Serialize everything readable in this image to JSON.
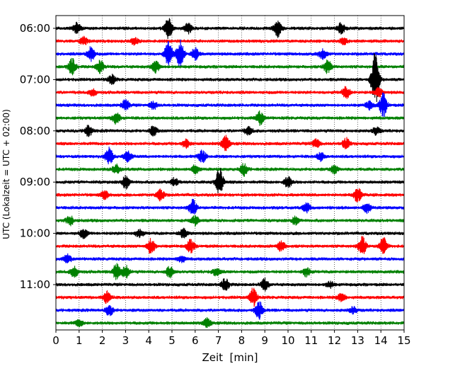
{
  "chart_data": {
    "type": "line",
    "chart_kind": "helicorder",
    "title": "",
    "xlabel": "Zeit  [min]",
    "ylabel": "UTC (Lokalzeit = UTC + 02:00)",
    "xlim": [
      0,
      15
    ],
    "x_ticks": [
      0,
      1,
      2,
      3,
      4,
      5,
      6,
      7,
      8,
      9,
      10,
      11,
      12,
      13,
      14,
      15
    ],
    "x_tick_labels": [
      "0",
      "1",
      "2",
      "3",
      "4",
      "5",
      "6",
      "7",
      "8",
      "9",
      "10",
      "11",
      "12",
      "13",
      "14",
      "15"
    ],
    "y_tick_labels": [
      "06:00",
      "07:00",
      "08:00",
      "09:00",
      "10:00",
      "11:00"
    ],
    "y_tick_rows": [
      0,
      4,
      8,
      12,
      16,
      20
    ],
    "grid": "vertical dotted lines at each minute",
    "trace_colors": [
      "#000000",
      "#ff0000",
      "#0000ff",
      "#008000"
    ],
    "traces": [
      {
        "start": "06:00",
        "color": "#000000",
        "events": [
          [
            0.9,
            0.8
          ],
          [
            4.85,
            1.6
          ],
          [
            5.7,
            0.8
          ],
          [
            9.55,
            1.3
          ],
          [
            12.3,
            0.9
          ]
        ]
      },
      {
        "start": "06:15",
        "color": "#ff0000",
        "events": [
          [
            1.2,
            0.6
          ],
          [
            3.4,
            0.5
          ],
          [
            12.4,
            0.5
          ]
        ]
      },
      {
        "start": "06:30",
        "color": "#0000ff",
        "events": [
          [
            1.5,
            1.1
          ],
          [
            4.85,
            1.9
          ],
          [
            5.35,
            2.1
          ],
          [
            6.0,
            0.9
          ],
          [
            11.5,
            0.8
          ]
        ]
      },
      {
        "start": "06:45",
        "color": "#008000",
        "events": [
          [
            0.7,
            1.3
          ],
          [
            1.9,
            1.0
          ],
          [
            4.3,
            0.9
          ],
          [
            11.7,
            1.0
          ]
        ]
      },
      {
        "start": "07:00",
        "color": "#000000",
        "events": [
          [
            2.4,
            0.7
          ],
          [
            13.75,
            4.3
          ]
        ]
      },
      {
        "start": "07:15",
        "color": "#ff0000",
        "events": [
          [
            1.6,
            0.5
          ],
          [
            12.5,
            0.9
          ],
          [
            13.9,
            0.7
          ]
        ]
      },
      {
        "start": "07:30",
        "color": "#0000ff",
        "events": [
          [
            3.0,
            0.8
          ],
          [
            4.2,
            0.6
          ],
          [
            13.5,
            0.6
          ],
          [
            14.1,
            1.8
          ]
        ]
      },
      {
        "start": "07:45",
        "color": "#008000",
        "events": [
          [
            2.6,
            0.9
          ],
          [
            8.8,
            1.0
          ]
        ]
      },
      {
        "start": "08:00",
        "color": "#000000",
        "events": [
          [
            1.4,
            0.8
          ],
          [
            4.2,
            0.7
          ],
          [
            8.3,
            0.6
          ],
          [
            13.8,
            0.6
          ]
        ]
      },
      {
        "start": "08:15",
        "color": "#ff0000",
        "events": [
          [
            5.6,
            0.6
          ],
          [
            7.3,
            1.2
          ],
          [
            11.2,
            0.7
          ],
          [
            12.5,
            0.8
          ]
        ]
      },
      {
        "start": "08:30",
        "color": "#0000ff",
        "events": [
          [
            2.3,
            1.4
          ],
          [
            3.1,
            0.8
          ],
          [
            6.3,
            0.9
          ],
          [
            11.4,
            0.6
          ]
        ]
      },
      {
        "start": "08:45",
        "color": "#008000",
        "events": [
          [
            2.6,
            0.7
          ],
          [
            6.0,
            0.6
          ],
          [
            8.1,
            0.9
          ],
          [
            12.0,
            0.6
          ]
        ]
      },
      {
        "start": "09:00",
        "color": "#000000",
        "events": [
          [
            3.0,
            1.0
          ],
          [
            5.1,
            0.6
          ],
          [
            7.05,
            2.1
          ],
          [
            10.0,
            0.9
          ]
        ]
      },
      {
        "start": "09:15",
        "color": "#ff0000",
        "events": [
          [
            2.1,
            0.6
          ],
          [
            4.5,
            0.9
          ],
          [
            13.0,
            1.1
          ]
        ]
      },
      {
        "start": "09:30",
        "color": "#0000ff",
        "events": [
          [
            5.9,
            1.2
          ],
          [
            10.8,
            0.7
          ],
          [
            13.4,
            0.7
          ]
        ]
      },
      {
        "start": "09:45",
        "color": "#008000",
        "events": [
          [
            0.6,
            0.7
          ],
          [
            6.0,
            0.7
          ],
          [
            10.3,
            0.6
          ]
        ]
      },
      {
        "start": "10:00",
        "color": "#000000",
        "events": [
          [
            1.2,
            0.7
          ],
          [
            3.6,
            0.6
          ],
          [
            5.5,
            0.7
          ]
        ]
      },
      {
        "start": "10:15",
        "color": "#ff0000",
        "events": [
          [
            4.1,
            1.2
          ],
          [
            5.8,
            1.0
          ],
          [
            9.7,
            0.8
          ],
          [
            13.2,
            1.4
          ],
          [
            14.1,
            1.3
          ]
        ]
      },
      {
        "start": "10:30",
        "color": "#0000ff",
        "events": [
          [
            0.5,
            0.6
          ],
          [
            5.4,
            0.5
          ]
        ]
      },
      {
        "start": "10:45",
        "color": "#008000",
        "events": [
          [
            0.8,
            0.8
          ],
          [
            2.6,
            1.2
          ],
          [
            3.0,
            1.0
          ],
          [
            4.9,
            0.8
          ],
          [
            6.9,
            0.6
          ],
          [
            10.8,
            0.7
          ]
        ]
      },
      {
        "start": "11:00",
        "color": "#000000",
        "events": [
          [
            7.3,
            1.0
          ],
          [
            9.0,
            0.9
          ],
          [
            11.8,
            0.5
          ]
        ]
      },
      {
        "start": "11:15",
        "color": "#ff0000",
        "events": [
          [
            2.2,
            0.9
          ],
          [
            8.5,
            1.4
          ],
          [
            12.3,
            0.7
          ]
        ]
      },
      {
        "start": "11:30",
        "color": "#0000ff",
        "events": [
          [
            2.3,
            0.8
          ],
          [
            8.75,
            1.3
          ],
          [
            12.8,
            0.5
          ]
        ]
      },
      {
        "start": "11:45",
        "color": "#008000",
        "events": [
          [
            1.0,
            0.5
          ],
          [
            6.5,
            0.7
          ]
        ]
      }
    ]
  }
}
